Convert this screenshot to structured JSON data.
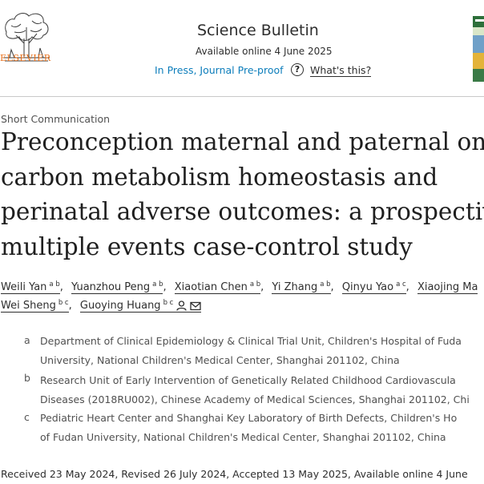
{
  "header": {
    "publisher_logo_text": "ELSEVIER",
    "journal_title": "Science Bulletin",
    "available_online": "Available online 4 June 2025",
    "status_link": "In Press, Journal Pre-proof",
    "whats_this": "What's this?",
    "help_icon": "question-circle-icon",
    "cover_icon": "journal-cover-thumbnail"
  },
  "article": {
    "type": "Short Communication",
    "title_lines": [
      "Preconception maternal and paternal one",
      "carbon metabolism homeostasis and",
      "perinatal adverse outcomes: a prospectiv",
      "multiple events case-control study"
    ],
    "authors": [
      {
        "name": "Weili Yan",
        "aff": "a b"
      },
      {
        "name": "Yuanzhou Peng",
        "aff": "a b"
      },
      {
        "name": "Xiaotian Chen",
        "aff": "a b"
      },
      {
        "name": "Yi Zhang",
        "aff": "a b"
      },
      {
        "name": "Qinyu Yao",
        "aff": "a c"
      },
      {
        "name": "Xiaojing Ma",
        "aff": ""
      },
      {
        "name": "Wei Sheng",
        "aff": "b c"
      },
      {
        "name": "Guoying Huang",
        "aff": "b c"
      }
    ],
    "author_icons": [
      "person-icon",
      "envelope-icon"
    ],
    "affiliations": [
      {
        "label": "a",
        "lines": [
          "Department of Clinical Epidemiology & Clinical Trial Unit, Children's Hospital of Fuda",
          "University, National Children's Medical Center, Shanghai 201102, China"
        ]
      },
      {
        "label": "b",
        "lines": [
          "Research Unit of Early Intervention of Genetically Related Childhood Cardiovascula",
          "Diseases (2018RU002), Chinese Academy of Medical Sciences, Shanghai 201102, Chi"
        ]
      },
      {
        "label": "c",
        "lines": [
          "Pediatric Heart Center and Shanghai Key Laboratory of Birth Defects, Children's Ho",
          "of Fudan University, National Children's Medical Center, Shanghai 201102, China"
        ]
      }
    ],
    "dates": "Received 23 May 2024, Revised 26 July 2024, Accepted 13 May 2025, Available online 4 June"
  }
}
